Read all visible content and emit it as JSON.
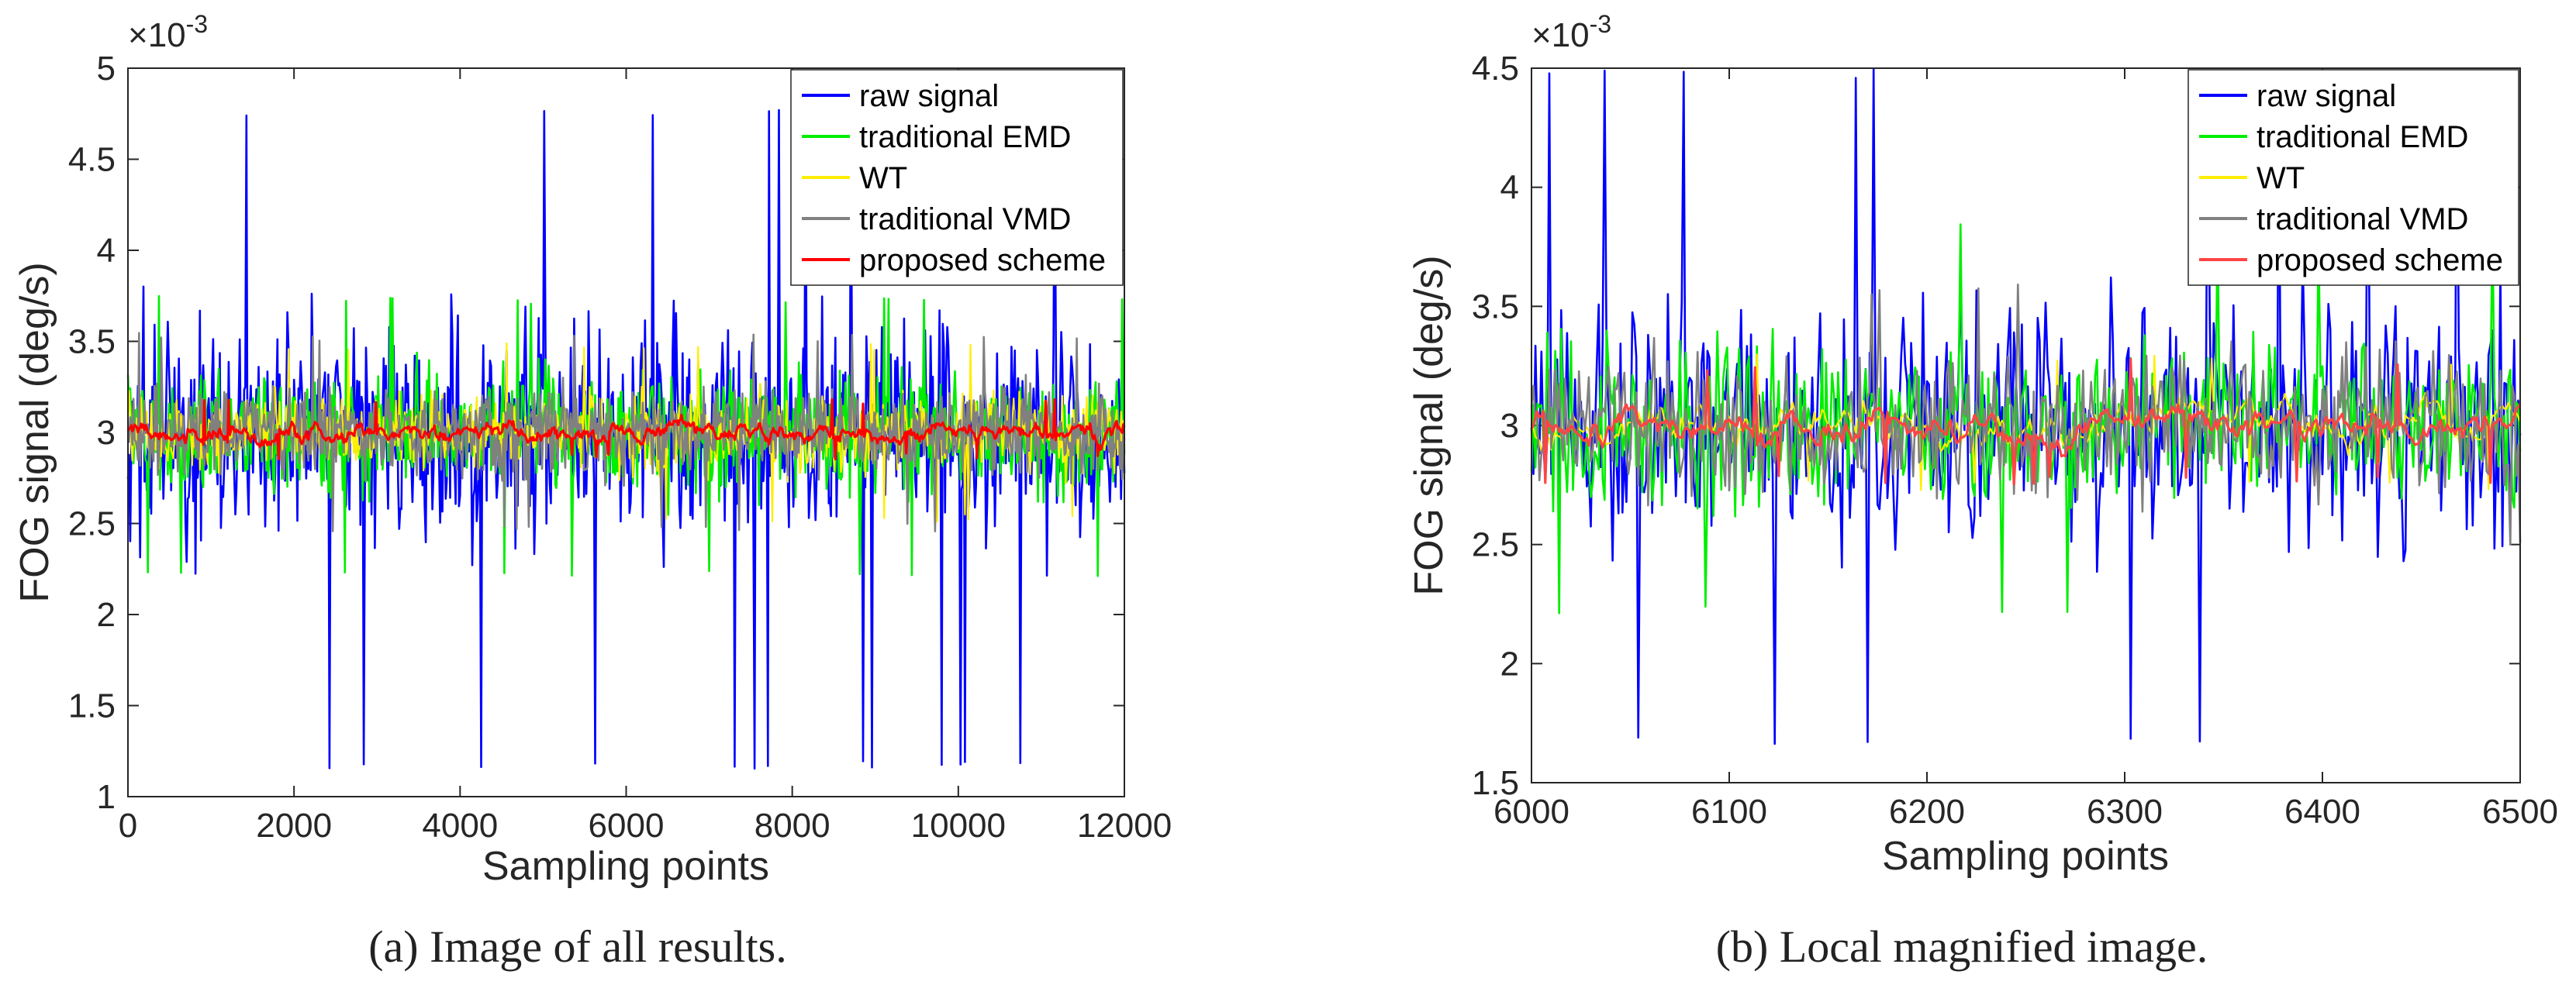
{
  "chart_data": [
    {
      "type": "line",
      "subplot": "a",
      "title": "",
      "xlabel": "Sampling points",
      "ylabel": "FOG signal (deg/s)",
      "exponent_label": "×10",
      "exponent_power": "-3",
      "xlim": [
        0,
        12000
      ],
      "ylim": [
        1,
        5
      ],
      "xticks": [
        0,
        2000,
        4000,
        6000,
        8000,
        10000,
        12000
      ],
      "xtick_labels": [
        "0",
        "2000",
        "4000",
        "6000",
        "8000",
        "10000",
        "12000"
      ],
      "yticks": [
        1,
        1.5,
        2,
        2.5,
        3,
        3.5,
        4,
        4.5,
        5
      ],
      "ytick_labels": [
        "1",
        "1.5",
        "2",
        "2.5",
        "3",
        "3.5",
        "4",
        "4.5",
        "5"
      ],
      "legend_position": "top-right",
      "series": [
        {
          "name": "raw signal",
          "color": "#0000ff",
          "mean": 3.0,
          "spread": 0.6,
          "min": 1.15,
          "max": 4.78
        },
        {
          "name": "traditional EMD",
          "color": "#00ee00",
          "mean": 3.0,
          "spread": 0.35,
          "min": 2.2,
          "max": 3.75
        },
        {
          "name": "WT",
          "color": "#ffee00",
          "mean": 3.0,
          "spread": 0.22,
          "min": 2.5,
          "max": 3.5
        },
        {
          "name": "traditional VMD",
          "color": "#808080",
          "mean": 3.0,
          "spread": 0.25,
          "min": 2.45,
          "max": 3.55
        },
        {
          "name": "proposed scheme",
          "color": "#ff0000",
          "mean": 3.0,
          "spread": 0.06,
          "min": 2.85,
          "max": 3.2
        }
      ]
    },
    {
      "type": "line",
      "subplot": "b",
      "title": "",
      "xlabel": "Sampling points",
      "ylabel": "FOG signal (deg/s)",
      "exponent_label": "×10",
      "exponent_power": "-3",
      "xlim": [
        6000,
        6500
      ],
      "ylim": [
        1.5,
        4.5
      ],
      "xticks": [
        6000,
        6100,
        6200,
        6300,
        6400,
        6500
      ],
      "xtick_labels": [
        "6000",
        "6100",
        "6200",
        "6300",
        "6400",
        "6500"
      ],
      "yticks": [
        1.5,
        2,
        2.5,
        3,
        3.5,
        4,
        4.5
      ],
      "ytick_labels": [
        "1.5",
        "2",
        "2.5",
        "3",
        "3.5",
        "4",
        "4.5"
      ],
      "legend_position": "top-right",
      "series": [
        {
          "name": "raw signal",
          "color": "#0000ff",
          "mean": 3.0,
          "spread": 0.55,
          "min": 1.65,
          "max": 4.5
        },
        {
          "name": "traditional EMD",
          "color": "#00ee00",
          "mean": 3.0,
          "spread": 0.35,
          "min": 2.2,
          "max": 3.85
        },
        {
          "name": "WT",
          "color": "#ffee00",
          "mean": 3.0,
          "spread": 0.1,
          "min": 2.72,
          "max": 3.3
        },
        {
          "name": "traditional VMD",
          "color": "#808080",
          "mean": 3.0,
          "spread": 0.3,
          "min": 2.5,
          "max": 3.6
        },
        {
          "name": "proposed scheme",
          "color": "#ff4444",
          "mean": 3.0,
          "spread": 0.08,
          "min": 2.75,
          "max": 3.28
        }
      ]
    }
  ],
  "captions": {
    "a": "(a)  Image of all results.",
    "b": "(b)  Local magnified image."
  }
}
